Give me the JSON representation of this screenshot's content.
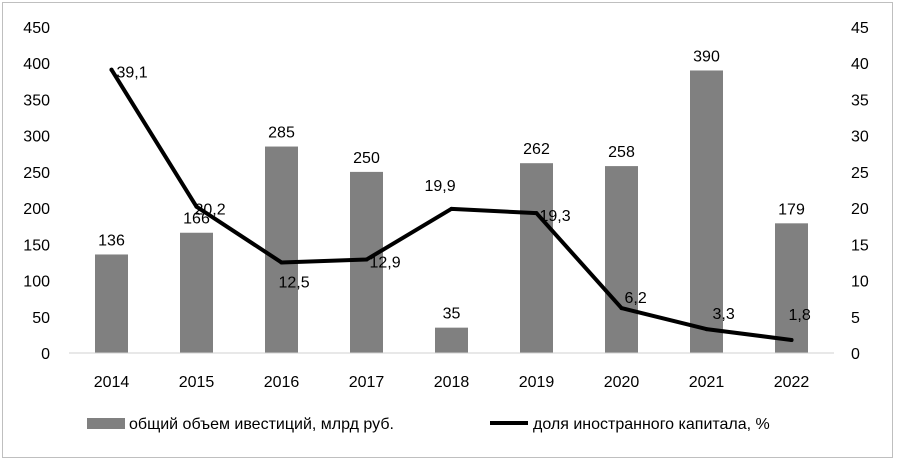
{
  "chart_data": {
    "type": "bar",
    "categories": [
      "2014",
      "2015",
      "2016",
      "2017",
      "2018",
      "2019",
      "2020",
      "2021",
      "2022"
    ],
    "series": [
      {
        "name": "общий объем ивестиций, млрд  руб.",
        "type": "bar",
        "axis": "left",
        "values": [
          136,
          166,
          285,
          250,
          35,
          262,
          258,
          390,
          179
        ],
        "labels": [
          "136",
          "166",
          "285",
          "250",
          "35",
          "262",
          "258",
          "390",
          "179"
        ],
        "color": "#808080"
      },
      {
        "name": "доля иностранного капитала, %",
        "type": "line",
        "axis": "right",
        "values": [
          39.1,
          20.2,
          12.5,
          12.9,
          19.9,
          19.3,
          6.2,
          3.3,
          1.8
        ],
        "labels": [
          "39,1",
          "20,2",
          "12,5",
          "12,9",
          "19,9",
          "19,3",
          "6,2",
          "3,3",
          "1,8"
        ],
        "color": "#000000"
      }
    ],
    "y_left": {
      "min": 0,
      "max": 450,
      "ticks": [
        "0",
        "50",
        "100",
        "150",
        "200",
        "250",
        "300",
        "350",
        "400",
        "450"
      ]
    },
    "y_right": {
      "min": 0,
      "max": 45,
      "ticks": [
        "0",
        "5",
        "10",
        "15",
        "20",
        "25",
        "30",
        "35",
        "40",
        "45"
      ]
    },
    "grid": false,
    "legend_position": "bottom"
  }
}
